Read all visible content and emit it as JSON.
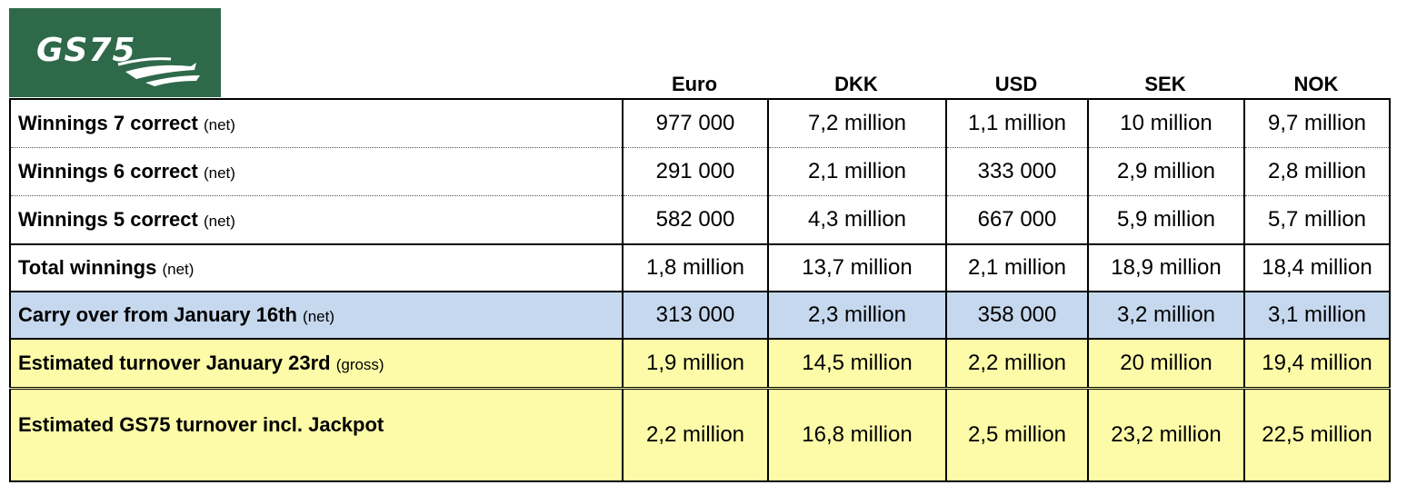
{
  "logo": {
    "text": "GS75",
    "name": "gs75-logo"
  },
  "columns": [
    "Euro",
    "DKK",
    "USD",
    "SEK",
    "NOK"
  ],
  "rows": [
    {
      "label": "Winnings 7 correct",
      "note": "(net)",
      "values": [
        "977 000",
        "7,2 million",
        "1,1 million",
        "10 million",
        "9,7 million"
      ]
    },
    {
      "label": "Winnings 6 correct",
      "note": "(net)",
      "values": [
        "291 000",
        "2,1 million",
        "333 000",
        "2,9 million",
        "2,8 million"
      ]
    },
    {
      "label": "Winnings 5 correct",
      "note": "(net)",
      "values": [
        "582 000",
        "4,3 million",
        "667 000",
        "5,9 million",
        "5,7 million"
      ]
    },
    {
      "label": "Total winnings",
      "note": "(net)",
      "values": [
        "1,8 million",
        "13,7 million",
        "2,1 million",
        "18,9 million",
        "18,4 million"
      ]
    },
    {
      "label": "Carry over from January 16th",
      "note": "(net)",
      "values": [
        "313 000",
        "2,3 million",
        "358 000",
        "3,2 million",
        "3,1 million"
      ]
    },
    {
      "label": "Estimated turnover January 23rd",
      "note": "(gross)",
      "values": [
        "1,9 million",
        "14,5 million",
        "2,2 million",
        "20 million",
        "19,4 million"
      ]
    },
    {
      "label": "Estimated GS75 turnover incl. Jackpot",
      "note": "",
      "values": [
        "2,2 million",
        "16,8 million",
        "2,5 million",
        "23,2 million",
        "22,5 million"
      ]
    }
  ],
  "colors": {
    "logo_bg": "#2e6a4a",
    "carry_over_bg": "#c5d8ee",
    "estimate_bg": "#fdfba8"
  }
}
